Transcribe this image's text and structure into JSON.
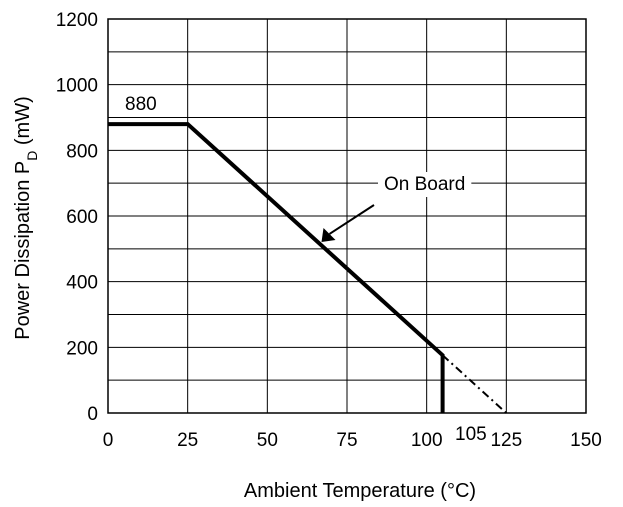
{
  "chart_data": {
    "type": "line",
    "xlabel": "Ambient Temperature (°C)",
    "ylabel_main": "Power Dissipation P",
    "ylabel_sub": "D",
    "ylabel_unit": " (mW)",
    "xlim": [
      0,
      150
    ],
    "ylim": [
      0,
      1200
    ],
    "x_ticks": [
      0,
      25,
      50,
      75,
      100,
      125,
      150
    ],
    "y_ticks": [
      0,
      200,
      400,
      600,
      800,
      1000,
      1200
    ],
    "grid": true,
    "series": [
      {
        "name": "On Board",
        "style": "solid",
        "points": [
          [
            0,
            880
          ],
          [
            25,
            880
          ],
          [
            105,
            176
          ],
          [
            105,
            0
          ]
        ]
      },
      {
        "name": "",
        "style": "dash-dot",
        "points": [
          [
            105,
            176
          ],
          [
            125,
            0
          ]
        ]
      }
    ],
    "annotations": {
      "value_880": "880",
      "value_105": "105",
      "on_board": "On Board"
    },
    "colors": {
      "line": "#000000",
      "grid": "#000000",
      "background": "#ffffff"
    }
  }
}
